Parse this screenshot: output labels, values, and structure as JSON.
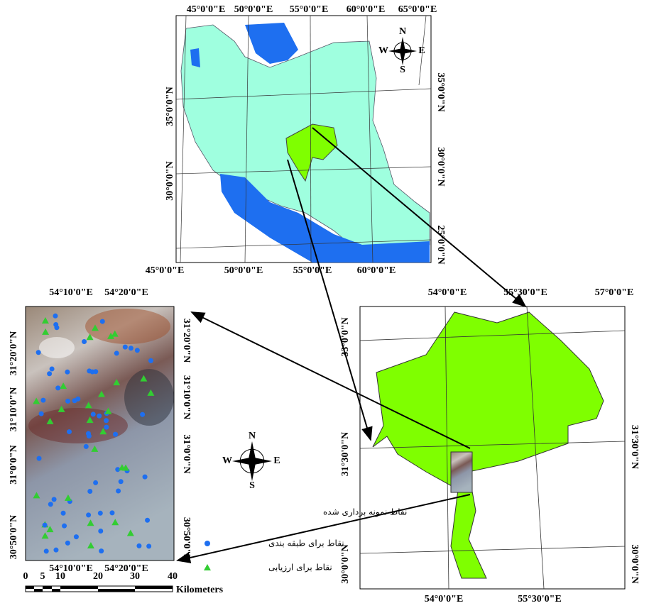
{
  "iran_map": {
    "top_labels": [
      "45°0'0\"E",
      "50°0'0\"E",
      "55°0'0\"E",
      "60°0'0\"E",
      "65°0'0\"E"
    ],
    "bottom_labels": [
      "45°0'0\"E",
      "50°0'0\"E",
      "55°0'0\"E",
      "60°0'0\"E"
    ],
    "left_labels": [
      "35°0'0\"N",
      "30°0'0\"N"
    ],
    "right_labels": [
      "35°0'0\"N",
      "30°0'0\"N",
      "25°0'0\"N"
    ],
    "compass": {
      "n": "N",
      "s": "S",
      "e": "E",
      "w": "W"
    }
  },
  "study_area_map": {
    "top_labels": [
      "54°10'0\"E",
      "54°20'0\"E"
    ],
    "bottom_labels": [
      "54°10'0\"E",
      "54°20'0\"E"
    ],
    "left_labels": [
      "31°20'0\"N",
      "31°10'0\"N",
      "31°0'0\"N",
      "30°50'0\"N"
    ],
    "right_labels": [
      "31°20'0\"N",
      "31°10'0\"N",
      "31°0'0\"N",
      "30°50'0\"N"
    ],
    "scale_bar": {
      "ticks": [
        "0",
        "5",
        "10",
        "20",
        "30",
        "40"
      ],
      "unit": "Kilometers"
    },
    "compass": {
      "n": "N",
      "s": "S",
      "e": "E",
      "w": "W"
    }
  },
  "legend": {
    "title": "نقاط نمونه برداری شده",
    "items": [
      "نقاط برای طبقه بندی",
      "نقاط برای ارزیابی"
    ]
  },
  "yazd_map": {
    "top_labels": [
      "54°0'0\"E",
      "55°30'0\"E",
      "57°0'0\"E"
    ],
    "bottom_labels": [
      "54°0'0\"E",
      "55°30'0\"E"
    ],
    "left_labels": [
      "33°0'0\"N",
      "31°30'0\"N",
      "30°0'0\"N"
    ],
    "right_labels": [
      "31°30'0\"N",
      "30°0'0\"N"
    ]
  }
}
